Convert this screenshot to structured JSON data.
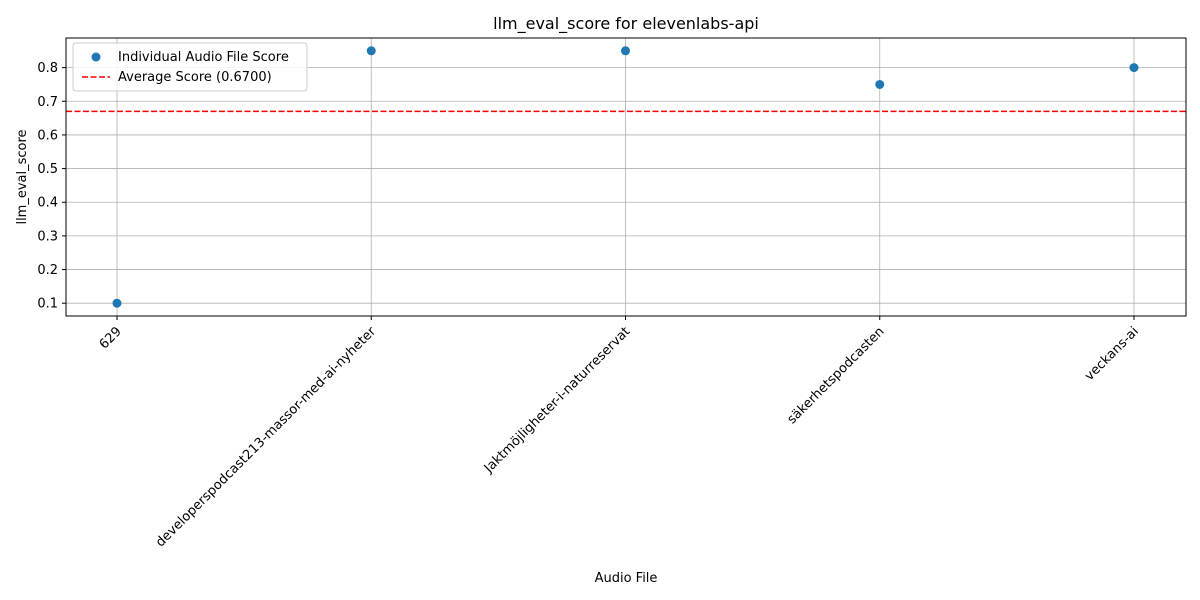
{
  "chart_data": {
    "type": "scatter",
    "title": "llm_eval_score for elevenlabs-api",
    "xlabel": "Audio File",
    "ylabel": "llm_eval_score",
    "categories": [
      "629",
      "developerspodcast213-massor-med-ai-nyheter",
      "Jaktmöjligheter-i-naturreservat",
      "säkerhetspodcasten",
      "veckans-ai"
    ],
    "series": [
      {
        "name": "Individual Audio File Score",
        "values": [
          0.1,
          0.85,
          0.85,
          0.75,
          0.8
        ],
        "color": "#1f77b4"
      }
    ],
    "average": {
      "label": "Average Score (0.6700)",
      "value": 0.67,
      "color": "#ff0000",
      "style": "dashed"
    },
    "ylim": [
      0.062,
      0.888
    ],
    "yticks": [
      0.1,
      0.2,
      0.3,
      0.4,
      0.5,
      0.6,
      0.7,
      0.8
    ],
    "ytick_labels": [
      "0.1",
      "0.2",
      "0.3",
      "0.4",
      "0.5",
      "0.6",
      "0.7",
      "0.8"
    ],
    "grid": true,
    "legend_position": "top-left",
    "xtick_rotation": -45
  }
}
